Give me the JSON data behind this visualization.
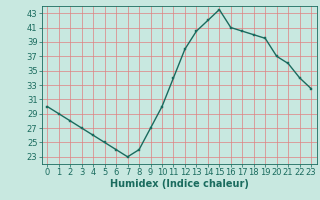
{
  "x": [
    0,
    1,
    2,
    3,
    4,
    5,
    6,
    7,
    8,
    9,
    10,
    11,
    12,
    13,
    14,
    15,
    16,
    17,
    18,
    19,
    20,
    21,
    22,
    23
  ],
  "y": [
    30,
    29,
    28,
    27,
    26,
    25,
    24,
    23,
    24,
    27,
    30,
    34,
    38,
    40.5,
    42,
    43.5,
    41,
    40.5,
    40,
    39.5,
    37,
    36,
    34,
    32.5
  ],
  "line_color": "#1a6b5e",
  "marker_color": "#1a6b5e",
  "bg_color": "#c8e8e0",
  "grid_color_h": "#e08080",
  "grid_color_v": "#e08080",
  "xlabel": "Humidex (Indice chaleur)",
  "xlim": [
    -0.5,
    23.5
  ],
  "ylim": [
    22,
    44
  ],
  "yticks": [
    23,
    25,
    27,
    29,
    31,
    33,
    35,
    37,
    39,
    41,
    43
  ],
  "xticks": [
    0,
    1,
    2,
    3,
    4,
    5,
    6,
    7,
    8,
    9,
    10,
    11,
    12,
    13,
    14,
    15,
    16,
    17,
    18,
    19,
    20,
    21,
    22,
    23
  ],
  "xlabel_fontsize": 7,
  "tick_fontsize": 6,
  "linewidth": 1.0,
  "markersize": 2.0
}
